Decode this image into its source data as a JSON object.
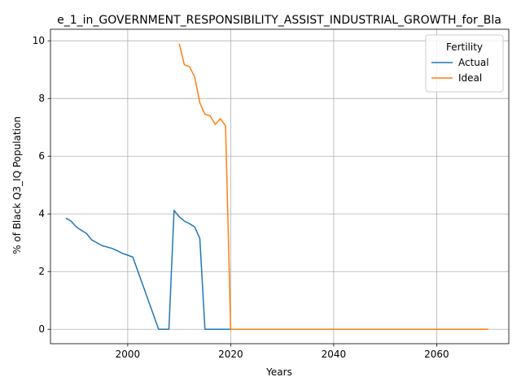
{
  "chart_data": {
    "type": "line",
    "title": "e_1_in_GOVERNMENT_RESPONSIBILITY_ASSIST_INDUSTRIAL_GROWTH_for_Bla",
    "xlabel": "Years",
    "ylabel": "% of Black Q3_IQ Population",
    "xlim": [
      1985,
      2074
    ],
    "ylim": [
      -0.5,
      10.4
    ],
    "xticks": [
      2000,
      2020,
      2040,
      2060
    ],
    "yticks": [
      0,
      2,
      4,
      6,
      8,
      10
    ],
    "grid": true,
    "legend": {
      "title": "Fertility",
      "placement": "top-right"
    },
    "series": [
      {
        "name": "Actual",
        "color": "#1f77b4",
        "points": [
          [
            1988,
            3.85
          ],
          [
            1989,
            3.75
          ],
          [
            1990,
            3.55
          ],
          [
            1991,
            3.43
          ],
          [
            1992,
            3.32
          ],
          [
            1993,
            3.1
          ],
          [
            1994,
            3.0
          ],
          [
            1995,
            2.9
          ],
          [
            1996,
            2.85
          ],
          [
            1997,
            2.8
          ],
          [
            1998,
            2.72
          ],
          [
            1999,
            2.63
          ],
          [
            2000,
            2.57
          ],
          [
            2001,
            2.5
          ],
          [
            2006,
            0.0
          ],
          [
            2007,
            0.0
          ],
          [
            2008,
            0.0
          ],
          [
            2009,
            4.12
          ],
          [
            2010,
            3.9
          ],
          [
            2011,
            3.75
          ],
          [
            2012,
            3.66
          ],
          [
            2013,
            3.55
          ],
          [
            2014,
            3.15
          ],
          [
            2015,
            0.0
          ],
          [
            2020,
            0.0
          ],
          [
            2040,
            0.0
          ],
          [
            2060,
            0.0
          ],
          [
            2070,
            0.0
          ]
        ]
      },
      {
        "name": "Ideal",
        "color": "#ff7f0e",
        "points": [
          [
            2010,
            9.9
          ],
          [
            2011,
            9.17
          ],
          [
            2012,
            9.1
          ],
          [
            2013,
            8.75
          ],
          [
            2014,
            7.85
          ],
          [
            2015,
            7.45
          ],
          [
            2016,
            7.4
          ],
          [
            2017,
            7.1
          ],
          [
            2018,
            7.3
          ],
          [
            2019,
            7.05
          ],
          [
            2020,
            0.0
          ],
          [
            2040,
            0.0
          ],
          [
            2060,
            0.0
          ],
          [
            2070,
            0.0
          ]
        ]
      }
    ]
  }
}
